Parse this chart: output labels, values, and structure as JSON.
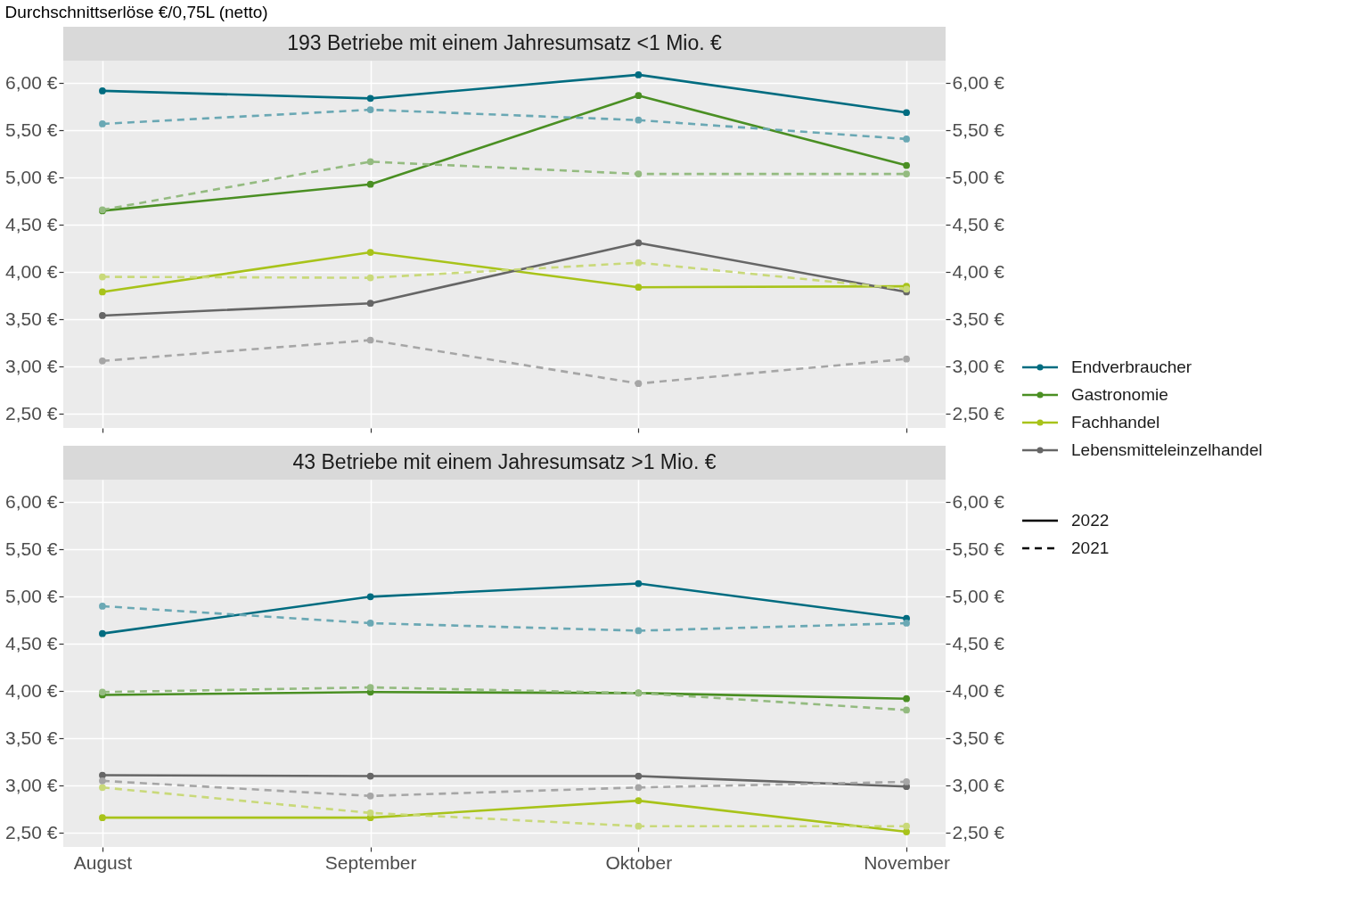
{
  "chart_data": [
    {
      "type": "line",
      "title": "193 Betriebe mit einem Jahresumsatz <1 Mio. €",
      "ylabel": "Durchschnittserlöse €/0,75L (netto)",
      "categories": [
        null,
        null,
        null,
        null
      ],
      "ylim": [
        2.35,
        6.24
      ],
      "yticks": [
        {
          "value": 2.5,
          "label": "2,50 €"
        },
        {
          "value": 3.0,
          "label": "3,00 €"
        },
        {
          "value": 3.5,
          "label": "3,50 €"
        },
        {
          "value": 4.0,
          "label": "4,00 €"
        },
        {
          "value": 4.5,
          "label": "4,50 €"
        },
        {
          "value": 5.0,
          "label": "5,00 €"
        },
        {
          "value": 5.5,
          "label": "5,50 €"
        },
        {
          "value": 6.0,
          "label": "6,00 €"
        }
      ],
      "y2lim": [
        2.35,
        6.24
      ],
      "y2ticks": [
        {
          "value": 2.5,
          "label": "2,50 €"
        },
        {
          "value": 3.0,
          "label": "3,00 €"
        },
        {
          "value": 3.5,
          "label": "3,50 €"
        },
        {
          "value": 4.0,
          "label": "4,00 €"
        },
        {
          "value": 4.5,
          "label": "4,50 €"
        },
        {
          "value": 5.0,
          "label": "5,00 €"
        },
        {
          "value": 5.5,
          "label": "5,50 €"
        },
        {
          "value": 6.0,
          "label": "6,00 €"
        }
      ],
      "grid": true,
      "marker": "circle",
      "legend": "right",
      "tick_labels": "y",
      "annotations": [
        "2022",
        "2021"
      ],
      "series": [
        {
          "name": "Endverbraucher",
          "color": "#006c80",
          "line_style": "solid",
          "values": [
            5.92,
            5.84,
            6.09,
            5.69
          ]
        },
        {
          "name": "Gastronomie",
          "color": "#4a8f23",
          "line_style": "solid",
          "values": [
            4.65,
            4.93,
            5.87,
            5.13
          ]
        },
        {
          "name": "Fachhandel",
          "color": "#a8c31a",
          "line_style": "solid",
          "values": [
            3.79,
            4.21,
            3.84,
            3.85
          ]
        },
        {
          "name": "Lebensmitteleinzelhandel",
          "color": "#666666",
          "line_style": "solid",
          "values": [
            3.54,
            3.67,
            4.31,
            3.79
          ]
        },
        {
          "color": "#6aa8b4",
          "line_style": "dashed",
          "values": [
            5.57,
            5.72,
            5.61,
            5.41
          ]
        },
        {
          "color": "#94bb80",
          "line_style": "dashed",
          "values": [
            4.66,
            5.17,
            5.04,
            5.04
          ]
        },
        {
          "color": "#c9d97a",
          "line_style": "dashed",
          "values": [
            3.95,
            3.94,
            4.1,
            3.82
          ]
        },
        {
          "color": "#a6a6a6",
          "line_style": "dashed",
          "values": [
            3.06,
            3.28,
            2.82,
            3.08
          ]
        }
      ]
    },
    {
      "type": "line",
      "title": "43 Betriebe mit einem Jahresumsatz >1 Mio. €",
      "categories": [
        "August",
        "September",
        "Oktober",
        "November"
      ],
      "ylim": [
        2.35,
        6.24
      ],
      "yticks": [
        {
          "value": 2.5,
          "label": "2,50 €"
        },
        {
          "value": 3.0,
          "label": "3,00 €"
        },
        {
          "value": 3.5,
          "label": "3,50 €"
        },
        {
          "value": 4.0,
          "label": "4,00 €"
        },
        {
          "value": 4.5,
          "label": "4,50 €"
        },
        {
          "value": 5.0,
          "label": "5,00 €"
        },
        {
          "value": 5.5,
          "label": "5,50 €"
        },
        {
          "value": 6.0,
          "label": "6,00 €"
        }
      ],
      "y2lim": [
        2.35,
        6.24
      ],
      "y2ticks": [
        {
          "value": 2.5,
          "label": "2,50 €"
        },
        {
          "value": 3.0,
          "label": "3,00 €"
        },
        {
          "value": 3.5,
          "label": "3,50 €"
        },
        {
          "value": 4.0,
          "label": "4,00 €"
        },
        {
          "value": 4.5,
          "label": "4,50 €"
        },
        {
          "value": 5.0,
          "label": "5,00 €"
        },
        {
          "value": 5.5,
          "label": "5,50 €"
        },
        {
          "value": 6.0,
          "label": "6,00 €"
        }
      ],
      "grid": true,
      "marker": "circle",
      "series": [
        {
          "color": "#006c80",
          "line_style": "solid",
          "values": [
            4.61,
            5.0,
            5.14,
            4.77
          ]
        },
        {
          "color": "#4a8f23",
          "line_style": "solid",
          "values": [
            3.96,
            3.99,
            3.98,
            3.92
          ]
        },
        {
          "color": "#a8c31a",
          "line_style": "solid",
          "values": [
            2.66,
            2.66,
            2.84,
            2.51
          ]
        },
        {
          "color": "#666666",
          "line_style": "solid",
          "values": [
            3.11,
            3.1,
            3.1,
            2.99
          ]
        },
        {
          "color": "#6aa8b4",
          "line_style": "dashed",
          "values": [
            4.9,
            4.72,
            4.64,
            4.72
          ]
        },
        {
          "color": "#94bb80",
          "line_style": "dashed",
          "values": [
            3.99,
            4.04,
            3.98,
            3.8
          ]
        },
        {
          "color": "#c9d97a",
          "line_style": "dashed",
          "values": [
            2.98,
            2.71,
            2.57,
            2.57
          ]
        },
        {
          "color": "#a6a6a6",
          "line_style": "dashed",
          "values": [
            3.05,
            2.89,
            2.98,
            3.04
          ]
        }
      ]
    }
  ]
}
